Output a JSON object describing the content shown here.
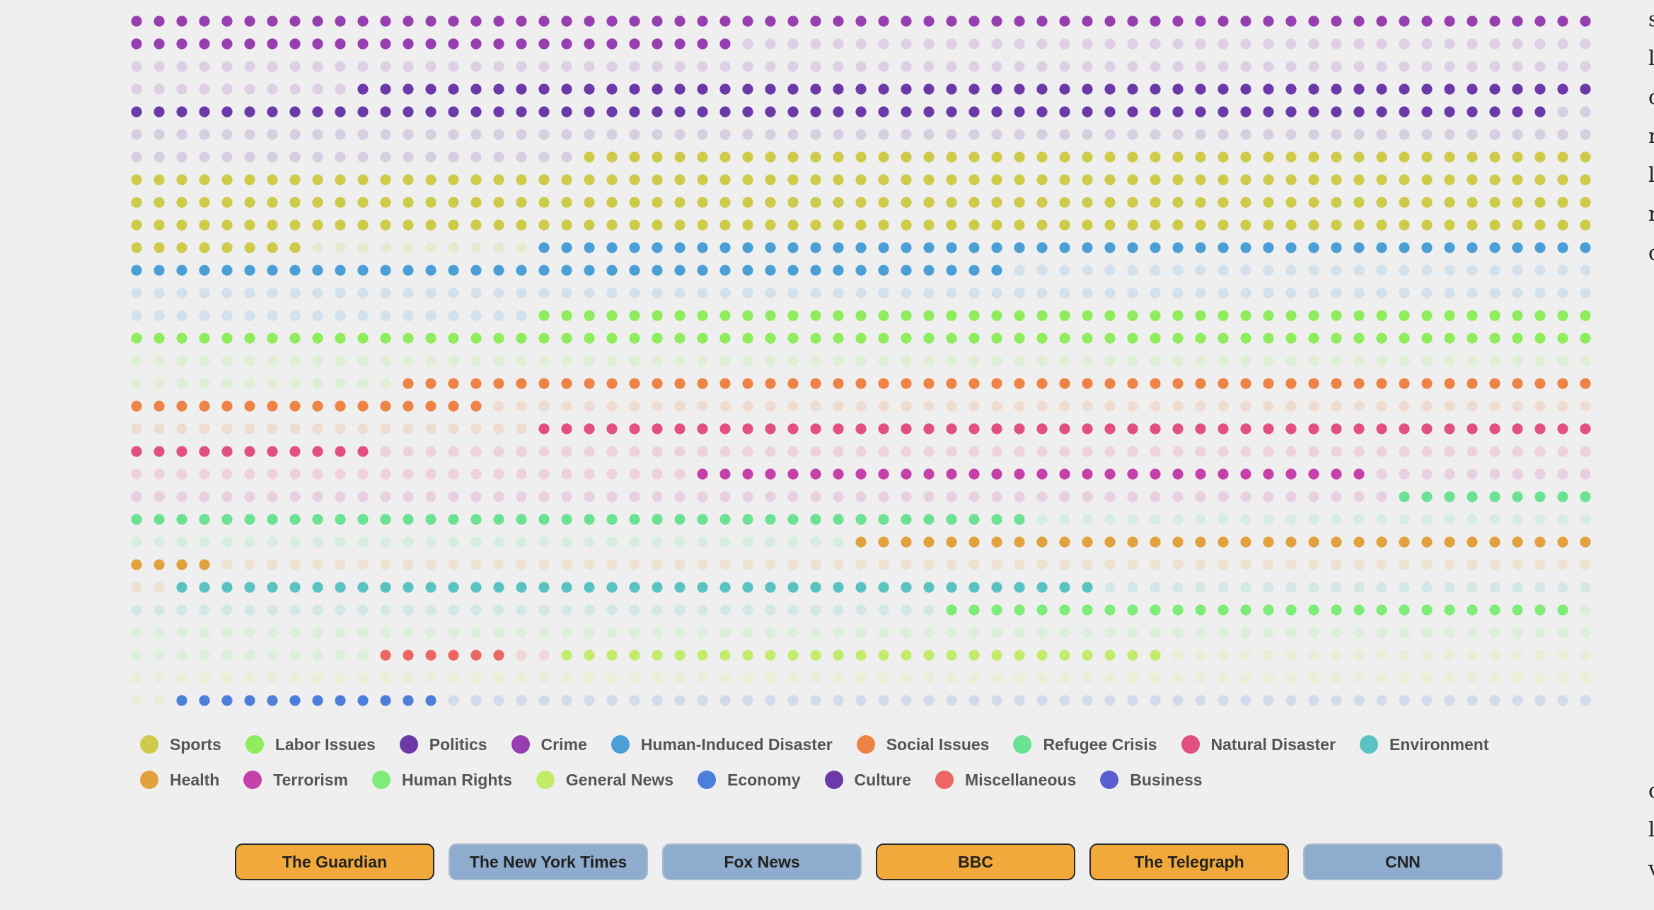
{
  "chart_data": {
    "type": "dot-matrix",
    "dots_per_row": 65,
    "background_alpha": 0.18,
    "highlighted_sources": [
      "The Guardian",
      "BBC",
      "The Telegraph"
    ],
    "categories": [
      {
        "name": "Crime",
        "color": "#973fb0",
        "total": 205,
        "highlighted": 92
      },
      {
        "name": "Politics",
        "color": "#6c3aa8",
        "total": 205,
        "highlighted": 118
      },
      {
        "name": "Sports",
        "color": "#cdcb49",
        "total": 258,
        "highlighted": 248
      },
      {
        "name": "Human-Induced Disaster",
        "color": "#4b9fd6",
        "total": 195,
        "highlighted": 86
      },
      {
        "name": "Labor Issues",
        "color": "#8eec5d",
        "total": 189,
        "highlighted": 112
      },
      {
        "name": "Social Issues",
        "color": "#ee8346",
        "total": 136,
        "highlighted": 69
      },
      {
        "name": "Natural Disaster",
        "color": "#e24f83",
        "total": 137,
        "highlighted": 58
      },
      {
        "name": "Terrorism",
        "color": "#c541a9",
        "total": 96,
        "highlighted": 30
      },
      {
        "name": "Refugee Crisis",
        "color": "#6be194",
        "total": 106,
        "highlighted": 49
      },
      {
        "name": "Health",
        "color": "#e1a23d",
        "total": 100,
        "highlighted": 37
      },
      {
        "name": "Environment",
        "color": "#5ac2c0",
        "total": 99,
        "highlighted": 41
      },
      {
        "name": "Human Rights",
        "color": "#7eec78",
        "total": 105,
        "highlighted": 28
      },
      {
        "name": "Miscellaneous",
        "color": "#ec6764",
        "total": 8,
        "highlighted": 6
      },
      {
        "name": "General News",
        "color": "#c3ec6b",
        "total": 113,
        "highlighted": 27
      },
      {
        "name": "Economy",
        "color": "#4c7fdc",
        "total": 125,
        "highlighted": 12
      },
      {
        "name": "Business",
        "color": "#5a5ed2",
        "total": 28,
        "highlighted": 9
      },
      {
        "name": "Culture",
        "color": "#6c3aa8",
        "total": 20,
        "highlighted": 11
      }
    ]
  },
  "legend": [
    {
      "label": "Sports",
      "color": "#cdcb49"
    },
    {
      "label": "Labor Issues",
      "color": "#8eec5d"
    },
    {
      "label": "Politics",
      "color": "#6c3aa8"
    },
    {
      "label": "Crime",
      "color": "#973fb0"
    },
    {
      "label": "Human-Induced Disaster",
      "color": "#4b9fd6"
    },
    {
      "label": "Social Issues",
      "color": "#ee8346"
    },
    {
      "label": "Refugee Crisis",
      "color": "#6be194"
    },
    {
      "label": "Natural Disaster",
      "color": "#e24f83"
    },
    {
      "label": "Environment",
      "color": "#5ac2c0"
    },
    {
      "label": "Health",
      "color": "#e1a23d"
    },
    {
      "label": "Terrorism",
      "color": "#c541a9"
    },
    {
      "label": "Human Rights",
      "color": "#7eec78"
    },
    {
      "label": "General News",
      "color": "#c3ec6b"
    },
    {
      "label": "Economy",
      "color": "#4c7fdc"
    },
    {
      "label": "Culture",
      "color": "#6c3aa8"
    },
    {
      "label": "Miscellaneous",
      "color": "#ec6764"
    },
    {
      "label": "Business",
      "color": "#5a5ed2"
    }
  ],
  "sources": [
    {
      "label": "The Guardian",
      "active": true
    },
    {
      "label": "The New York Times",
      "active": false
    },
    {
      "label": "Fox News",
      "active": false
    },
    {
      "label": "BBC",
      "active": true
    },
    {
      "label": "The Telegraph",
      "active": true
    },
    {
      "label": "CNN",
      "active": false
    }
  ],
  "edge_text_top": "s\nl\nc\nr\nl\nr\nc",
  "edge_text_bottom": "c\nl\nv",
  "colors": {
    "active_button": "#f2a93b",
    "inactive_button": "#8eaccd",
    "background": "#efefef"
  }
}
